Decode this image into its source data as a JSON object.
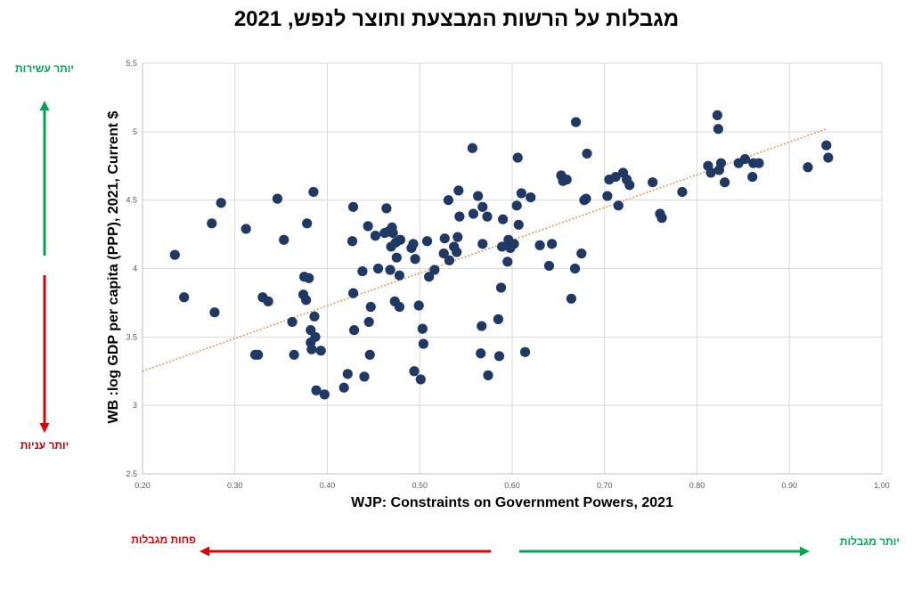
{
  "title": "מגבלות על הרשות המבצעת ותוצר לנפש, 2021",
  "labels": {
    "richer": "יותר עשירות",
    "poorer": "יותר עניות",
    "less_constraints": "פחות מגבלות",
    "more_constraints": "יותר מגבלות"
  },
  "colors": {
    "points": "#1f3864",
    "trend": "#ed7d31",
    "green": "#00a651",
    "red": "#e00000",
    "grid": "#d9d9d9"
  },
  "chart_data": {
    "type": "scatter",
    "xlabel": "WJP: Constraints on Government Powers, 2021",
    "ylabel": "WB :log GDP per capita (PPP), 2021, Current $",
    "xlim": [
      0.2,
      1.0
    ],
    "ylim": [
      2.5,
      5.5
    ],
    "xticks": [
      "0.20",
      "0.30",
      "0.40",
      "0.50",
      "0.60",
      "0.70",
      "0.80",
      "0.90",
      "1.00"
    ],
    "yticks": [
      "2.5",
      "3",
      "3.5",
      "4",
      "4.5",
      "5",
      "5.5"
    ],
    "grid": true,
    "trendline": {
      "x": [
        0.2,
        0.94
      ],
      "y": [
        3.25,
        5.02
      ],
      "style": "dotted"
    },
    "points": [
      [
        0.235,
        4.1
      ],
      [
        0.245,
        3.79
      ],
      [
        0.275,
        4.33
      ],
      [
        0.278,
        3.68
      ],
      [
        0.285,
        4.48
      ],
      [
        0.312,
        4.29
      ],
      [
        0.322,
        3.37
      ],
      [
        0.325,
        3.37
      ],
      [
        0.33,
        3.79
      ],
      [
        0.336,
        3.76
      ],
      [
        0.346,
        4.51
      ],
      [
        0.353,
        4.21
      ],
      [
        0.362,
        3.61
      ],
      [
        0.364,
        3.37
      ],
      [
        0.374,
        3.81
      ],
      [
        0.375,
        3.94
      ],
      [
        0.377,
        3.77
      ],
      [
        0.378,
        4.33
      ],
      [
        0.38,
        3.93
      ],
      [
        0.382,
        3.55
      ],
      [
        0.382,
        3.46
      ],
      [
        0.383,
        3.41
      ],
      [
        0.385,
        4.56
      ],
      [
        0.386,
        3.65
      ],
      [
        0.387,
        3.5
      ],
      [
        0.388,
        3.11
      ],
      [
        0.393,
        3.4
      ],
      [
        0.397,
        3.08
      ],
      [
        0.418,
        3.13
      ],
      [
        0.422,
        3.23
      ],
      [
        0.427,
        4.2
      ],
      [
        0.428,
        4.45
      ],
      [
        0.428,
        3.82
      ],
      [
        0.429,
        3.55
      ],
      [
        0.438,
        3.98
      ],
      [
        0.44,
        3.21
      ],
      [
        0.444,
        4.31
      ],
      [
        0.445,
        3.61
      ],
      [
        0.446,
        3.37
      ],
      [
        0.447,
        3.72
      ],
      [
        0.452,
        4.24
      ],
      [
        0.455,
        4.0
      ],
      [
        0.462,
        4.26
      ],
      [
        0.464,
        4.44
      ],
      [
        0.466,
        4.27
      ],
      [
        0.468,
        3.99
      ],
      [
        0.469,
        4.16
      ],
      [
        0.47,
        4.3
      ],
      [
        0.471,
        4.26
      ],
      [
        0.473,
        3.76
      ],
      [
        0.474,
        4.19
      ],
      [
        0.475,
        4.08
      ],
      [
        0.478,
        3.72
      ],
      [
        0.478,
        3.95
      ],
      [
        0.479,
        4.21
      ],
      [
        0.491,
        4.15
      ],
      [
        0.493,
        4.18
      ],
      [
        0.494,
        3.25
      ],
      [
        0.495,
        4.07
      ],
      [
        0.499,
        3.73
      ],
      [
        0.501,
        3.19
      ],
      [
        0.503,
        3.56
      ],
      [
        0.504,
        3.45
      ],
      [
        0.508,
        4.2
      ],
      [
        0.51,
        3.94
      ],
      [
        0.516,
        3.99
      ],
      [
        0.526,
        4.11
      ],
      [
        0.527,
        4.22
      ],
      [
        0.531,
        4.5
      ],
      [
        0.532,
        4.06
      ],
      [
        0.537,
        4.16
      ],
      [
        0.54,
        4.12
      ],
      [
        0.541,
        4.23
      ],
      [
        0.542,
        4.57
      ],
      [
        0.543,
        4.38
      ],
      [
        0.557,
        4.88
      ],
      [
        0.558,
        4.4
      ],
      [
        0.563,
        4.53
      ],
      [
        0.566,
        3.38
      ],
      [
        0.567,
        3.58
      ],
      [
        0.568,
        4.45
      ],
      [
        0.568,
        4.18
      ],
      [
        0.573,
        4.38
      ],
      [
        0.574,
        3.22
      ],
      [
        0.585,
        3.63
      ],
      [
        0.586,
        3.36
      ],
      [
        0.588,
        3.86
      ],
      [
        0.589,
        4.16
      ],
      [
        0.59,
        4.36
      ],
      [
        0.595,
        4.05
      ],
      [
        0.596,
        4.21
      ],
      [
        0.598,
        4.15
      ],
      [
        0.602,
        4.18
      ],
      [
        0.605,
        4.46
      ],
      [
        0.606,
        4.81
      ],
      [
        0.607,
        4.32
      ],
      [
        0.61,
        4.55
      ],
      [
        0.614,
        3.39
      ],
      [
        0.62,
        4.52
      ],
      [
        0.63,
        4.17
      ],
      [
        0.64,
        4.02
      ],
      [
        0.643,
        4.18
      ],
      [
        0.653,
        4.68
      ],
      [
        0.655,
        4.64
      ],
      [
        0.659,
        4.65
      ],
      [
        0.664,
        3.78
      ],
      [
        0.668,
        4.0
      ],
      [
        0.669,
        5.07
      ],
      [
        0.675,
        4.11
      ],
      [
        0.678,
        4.5
      ],
      [
        0.68,
        4.51
      ],
      [
        0.681,
        4.84
      ],
      [
        0.703,
        4.53
      ],
      [
        0.705,
        4.65
      ],
      [
        0.712,
        4.67
      ],
      [
        0.715,
        4.46
      ],
      [
        0.72,
        4.7
      ],
      [
        0.724,
        4.65
      ],
      [
        0.727,
        4.61
      ],
      [
        0.752,
        4.63
      ],
      [
        0.76,
        4.4
      ],
      [
        0.762,
        4.37
      ],
      [
        0.784,
        4.56
      ],
      [
        0.812,
        4.75
      ],
      [
        0.815,
        4.7
      ],
      [
        0.822,
        5.12
      ],
      [
        0.823,
        5.02
      ],
      [
        0.824,
        4.72
      ],
      [
        0.826,
        4.77
      ],
      [
        0.83,
        4.63
      ],
      [
        0.845,
        4.77
      ],
      [
        0.852,
        4.8
      ],
      [
        0.86,
        4.67
      ],
      [
        0.861,
        4.77
      ],
      [
        0.867,
        4.77
      ],
      [
        0.92,
        4.74
      ],
      [
        0.94,
        4.9
      ],
      [
        0.942,
        4.81
      ]
    ]
  }
}
